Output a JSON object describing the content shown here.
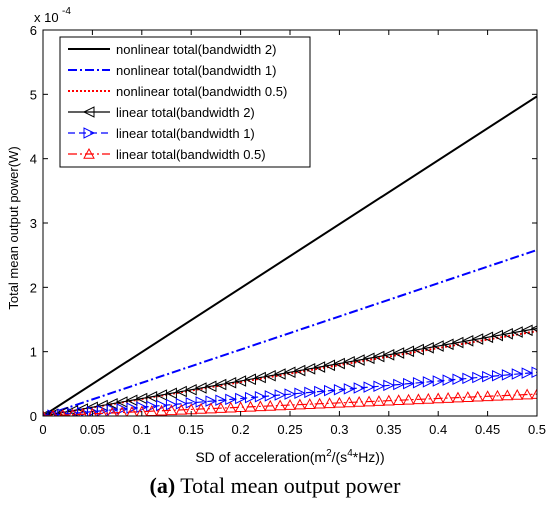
{
  "chart_data": {
    "type": "line",
    "xlabel": "SD of acceleration(m",
    "xlabel_parts": [
      "SD of acceleration(m",
      "2",
      "/(s",
      "4",
      "*Hz))"
    ],
    "ylabel": "Total mean output power(W)",
    "y_exponent_label": "x 10",
    "y_exponent_power": "-4",
    "xlim": [
      0,
      0.5
    ],
    "ylim": [
      0,
      6
    ],
    "x_ticks": [
      0,
      0.05,
      0.1,
      0.15,
      0.2,
      0.25,
      0.3,
      0.35,
      0.4,
      0.45,
      0.5
    ],
    "x_tick_labels": [
      "0",
      "0.05",
      "0.1",
      "0.15",
      "0.2",
      "0.25",
      "0.3",
      "0.35",
      "0.4",
      "0.45",
      "0.5"
    ],
    "y_ticks": [
      0,
      1,
      2,
      3,
      4,
      5,
      6
    ],
    "y_tick_labels": [
      "0",
      "1",
      "2",
      "3",
      "4",
      "5",
      "6"
    ],
    "grid": false,
    "legend_position": "top-left",
    "series": [
      {
        "name": "nonlinear total(bandwidth 2)",
        "color": "#000000",
        "style": "solid",
        "marker": "none",
        "x": [
          0,
          0.5
        ],
        "y": [
          0,
          4.97
        ]
      },
      {
        "name": "nonlinear total(bandwidth 1)",
        "color": "#0000ff",
        "style": "dashdot",
        "marker": "none",
        "x": [
          0,
          0.5
        ],
        "y": [
          0,
          2.58
        ]
      },
      {
        "name": "nonlinear total(bandwidth 0.5)",
        "color": "#ff0000",
        "style": "dotted",
        "marker": "none",
        "x": [
          0,
          0.5
        ],
        "y": [
          0,
          1.32
        ]
      },
      {
        "name": "linear total(bandwidth 2)",
        "color": "#000000",
        "style": "solid",
        "marker": "triangle-left",
        "x": [
          0,
          0.5
        ],
        "y": [
          0,
          1.36
        ]
      },
      {
        "name": "linear total(bandwidth 1)",
        "color": "#0000ff",
        "style": "dashed",
        "marker": "triangle-right",
        "x": [
          0,
          0.5
        ],
        "y": [
          0,
          0.68
        ]
      },
      {
        "name": "linear total(bandwidth 0.5)",
        "color": "#ff0000",
        "style": "dashdot",
        "marker": "triangle-up",
        "x": [
          0,
          0.5
        ],
        "y": [
          0,
          0.34
        ]
      }
    ]
  },
  "caption": {
    "label": "(a)",
    "text": " Total mean output power"
  }
}
